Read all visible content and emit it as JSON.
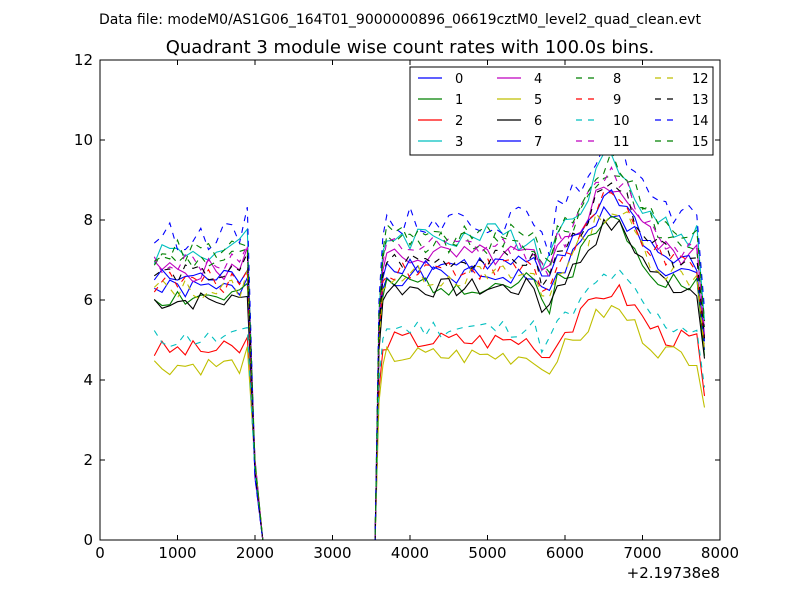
{
  "chart_data": {
    "type": "line",
    "suptitle": "Data file: modeM0/AS1G06_164T01_9000000896_06619cztM0_level2_quad_clean.evt",
    "title": "Quadrant 3 module wise count rates with 100.0s bins.",
    "xlabel": "",
    "ylabel": "",
    "xlim": [
      0,
      8000
    ],
    "ylim": [
      0,
      12
    ],
    "xticks": [
      "0",
      "1000",
      "2000",
      "3000",
      "4000",
      "5000",
      "6000",
      "7000",
      "8000"
    ],
    "yticks": [
      "0",
      "2",
      "4",
      "6",
      "8",
      "10",
      "12"
    ],
    "x_offset_label": "+2.19738e8",
    "legend_position": "top-right",
    "legend_columns": 4,
    "segments": [
      {
        "from": 700,
        "to": 1900
      },
      {
        "from": 3600,
        "to": 7800
      }
    ],
    "series": [
      {
        "name": "0",
        "color": "#0000ff",
        "dash": "solid",
        "base": 6.6,
        "amp": 0.25,
        "seed": 1
      },
      {
        "name": "1",
        "color": "#008000",
        "dash": "solid",
        "base": 6.4,
        "amp": 0.3,
        "seed": 2
      },
      {
        "name": "2",
        "color": "#ff0000",
        "dash": "solid",
        "base": 5.0,
        "amp": 0.25,
        "seed": 3
      },
      {
        "name": "3",
        "color": "#00bfbf",
        "dash": "solid",
        "base": 7.6,
        "amp": 0.35,
        "seed": 4
      },
      {
        "name": "4",
        "color": "#bf00bf",
        "dash": "solid",
        "base": 7.1,
        "amp": 0.3,
        "seed": 5
      },
      {
        "name": "5",
        "color": "#bfbf00",
        "dash": "solid",
        "base": 4.6,
        "amp": 0.25,
        "seed": 6
      },
      {
        "name": "6",
        "color": "#000000",
        "dash": "solid",
        "base": 6.3,
        "amp": 0.25,
        "seed": 7
      },
      {
        "name": "7",
        "color": "#0000ff",
        "dash": "solid",
        "base": 6.9,
        "amp": 0.25,
        "seed": 8
      },
      {
        "name": "8",
        "color": "#008000",
        "dash": "dashed",
        "base": 7.4,
        "amp": 0.3,
        "seed": 9
      },
      {
        "name": "9",
        "color": "#ff0000",
        "dash": "dashed",
        "base": 6.8,
        "amp": 0.3,
        "seed": 10
      },
      {
        "name": "10",
        "color": "#00bfbf",
        "dash": "dashed",
        "base": 5.3,
        "amp": 0.25,
        "seed": 11
      },
      {
        "name": "11",
        "color": "#bf00bf",
        "dash": "dashed",
        "base": 7.3,
        "amp": 0.3,
        "seed": 12
      },
      {
        "name": "12",
        "color": "#bfbf00",
        "dash": "dashed",
        "base": 6.6,
        "amp": 0.3,
        "seed": 13
      },
      {
        "name": "13",
        "color": "#000000",
        "dash": "dashed",
        "base": 7.0,
        "amp": 0.25,
        "seed": 14
      },
      {
        "name": "14",
        "color": "#0000ff",
        "dash": "dashed",
        "base": 8.0,
        "amp": 0.35,
        "seed": 15
      },
      {
        "name": "15",
        "color": "#008000",
        "dash": "dashed",
        "base": 7.6,
        "amp": 0.3,
        "seed": 16
      }
    ],
    "peak_profile": {
      "time": 6600,
      "width": 450,
      "gain": 0.25
    }
  }
}
